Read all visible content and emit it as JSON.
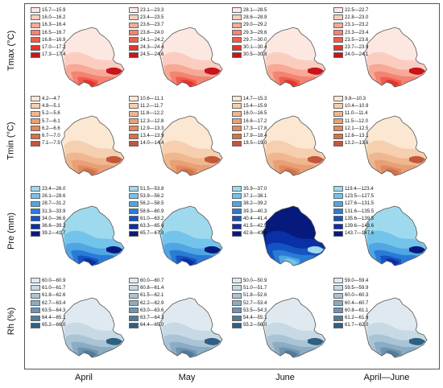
{
  "row_labels": [
    "Tmax (°C)",
    "Tmin (°C)",
    "Pre (mm)",
    "Rh (%)"
  ],
  "col_labels": [
    "April",
    "May",
    "June",
    "April—June"
  ],
  "rows": [
    {
      "variable": "Tmax",
      "colors": [
        "#fde7e1",
        "#fbcdc0",
        "#f7a996",
        "#f48472",
        "#ef5d4d",
        "#e5342b",
        "#c8141b"
      ],
      "panels": [
        {
          "legend": [
            "15.7—15.9",
            "16.0—16.2",
            "16.3—16.4",
            "16.5—16.7",
            "16.8—16.9",
            "17.0—17.2",
            "17.3—17.4"
          ]
        },
        {
          "legend": [
            "23.1—23.3",
            "23.4—23.5",
            "23.6—23.7",
            "23.8—24.0",
            "24.1—24.2",
            "24.3—24.4",
            "24.5—24.6"
          ]
        },
        {
          "legend": [
            "28.1—28.5",
            "28.6—28.9",
            "29.0—29.2",
            "29.3—29.6",
            "29.7—30.0",
            "30.1—30.4",
            "30.5—30.8"
          ]
        },
        {
          "legend": [
            "22.5—22.7",
            "22.8—23.0",
            "23.1—23.2",
            "23.3—23.4",
            "23.5—23.6",
            "23.7—23.9",
            "24.0—24.1"
          ]
        }
      ]
    },
    {
      "variable": "Tmin",
      "colors": [
        "#fbe7d2",
        "#f5cfae",
        "#efb78f",
        "#e9a076",
        "#e08a60",
        "#d4714a",
        "#c2573a"
      ],
      "panels": [
        {
          "legend": [
            "4.2—4.7",
            "4.8—5.1",
            "5.2—5.6",
            "5.7—6.1",
            "6.2—6.6",
            "6.7—7.0",
            "7.1—7.5"
          ]
        },
        {
          "legend": [
            "10.6—11.1",
            "11.2—11.7",
            "11.8—12.2",
            "12.3—12.8",
            "12.9—13.3",
            "13.4—13.9",
            "14.0—14.4"
          ]
        },
        {
          "legend": [
            "14.7—15.3",
            "15.4—15.9",
            "16.0—16.5",
            "16.6—17.2",
            "17.3—17.8",
            "17.9—18.4",
            "18.5—19.0"
          ]
        },
        {
          "legend": [
            "9.8—10.3",
            "10.4—10.9",
            "11.0—11.4",
            "11.5—12.0",
            "12.1—12.5",
            "12.6—13.1",
            "13.2—13.6"
          ]
        }
      ]
    },
    {
      "variable": "Pre",
      "colors": [
        "#9ed9ee",
        "#74c3ea",
        "#4fa6e2",
        "#2a7bd6",
        "#1553c2",
        "#0a2fa6",
        "#061a7e"
      ],
      "panels": [
        {
          "legend": [
            "23.4—26.0",
            "26.1—28.6",
            "28.7—31.2",
            "31.3—33.9",
            "34.0—36.6",
            "36.6—39.2",
            "39.2—41.7"
          ]
        },
        {
          "legend": [
            "51.5—53.8",
            "53.9—56.2",
            "56.2—58.5",
            "58.6—60.9",
            "61.0—63.2",
            "63.3—65.6",
            "65.7—67.9"
          ]
        },
        {
          "legend": [
            "35.9—37.0",
            "37.1—38.1",
            "38.2—39.2",
            "39.3—40.3",
            "40.4—41.4",
            "41.5—42.5",
            "42.6—43.6"
          ]
        },
        {
          "legend": [
            "119.4—123.4",
            "123.5—127.5",
            "127.6—131.5",
            "131.6—135.5",
            "135.6—139.5",
            "139.6—143.6",
            "143.7—147.6"
          ]
        }
      ]
    },
    {
      "variable": "Rh",
      "colors": [
        "#dfe9ef",
        "#c6d9e4",
        "#a9c4d5",
        "#8aacc4",
        "#6e94b1",
        "#507b9b",
        "#2f5f82"
      ],
      "panels": [
        {
          "legend": [
            "60.0—60.9",
            "61.0—61.7",
            "61.8—62.6",
            "62.7—63.4",
            "63.5—64.3",
            "64.4—65.1",
            "65.2—66.0"
          ]
        },
        {
          "legend": [
            "60.0—60.7",
            "60.8—61.4",
            "61.5—62.1",
            "62.2—62.9",
            "63.0—63.6",
            "63.7—64.3",
            "64.4—65.0"
          ]
        },
        {
          "legend": [
            "50.0—50.9",
            "51.0—51.7",
            "51.8—52.6",
            "52.7—53.4",
            "53.5—54.3",
            "54.4—55.1",
            "55.2—56.0"
          ]
        },
        {
          "legend": [
            "59.0—59.4",
            "59.5—59.9",
            "60.0—60.3",
            "60.4—60.7",
            "60.8—61.1",
            "61.2—61.6",
            "61.7—62.0"
          ]
        }
      ]
    }
  ]
}
